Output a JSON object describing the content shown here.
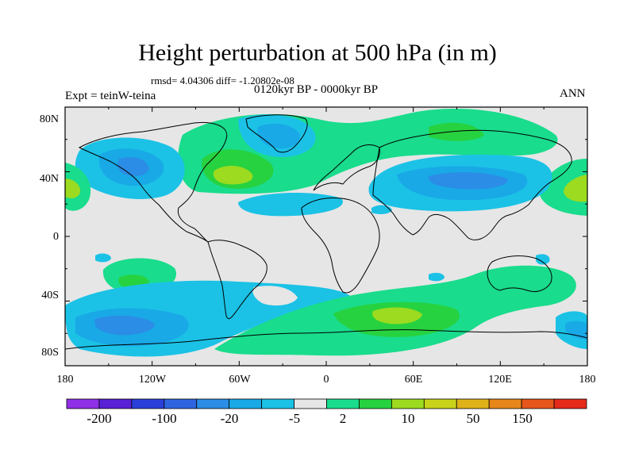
{
  "title": "Height perturbation at 500 hPa (in m)",
  "stats_text": "rmsd= 4.04306 diff= -1.20802e-08",
  "period": "0120kyr BP - 0000kyr BP",
  "experiment": "Expt = teinW-teina",
  "season": "ANN",
  "lat_labels": [
    "80N",
    "40N",
    "0",
    "40S",
    "80S"
  ],
  "lon_labels": [
    "180",
    "120W",
    "60W",
    "0",
    "60E",
    "120E",
    "180"
  ],
  "colorbar": {
    "labels": [
      "-200",
      "-100",
      "-20",
      "-5",
      "2",
      "10",
      "50",
      "150"
    ],
    "colors": [
      "#8f2fe6",
      "#5a20d6",
      "#2a3fd9",
      "#2f64e0",
      "#2b8de6",
      "#19a9e6",
      "#1bc2e6",
      "#e6e6e6",
      "#19dc8c",
      "#27d240",
      "#9cdb1f",
      "#c9d31a",
      "#e0b21a",
      "#e7861a",
      "#e7561a",
      "#e52a1a"
    ]
  },
  "map_colors": {
    "neutral": "#e6e6e6",
    "green": "#19dc8c",
    "green2": "#27d240",
    "yellow": "#9cdb1f",
    "light_blue": "#1bc2e6",
    "blue": "#19a9e6",
    "mid_blue": "#2b8de6"
  }
}
